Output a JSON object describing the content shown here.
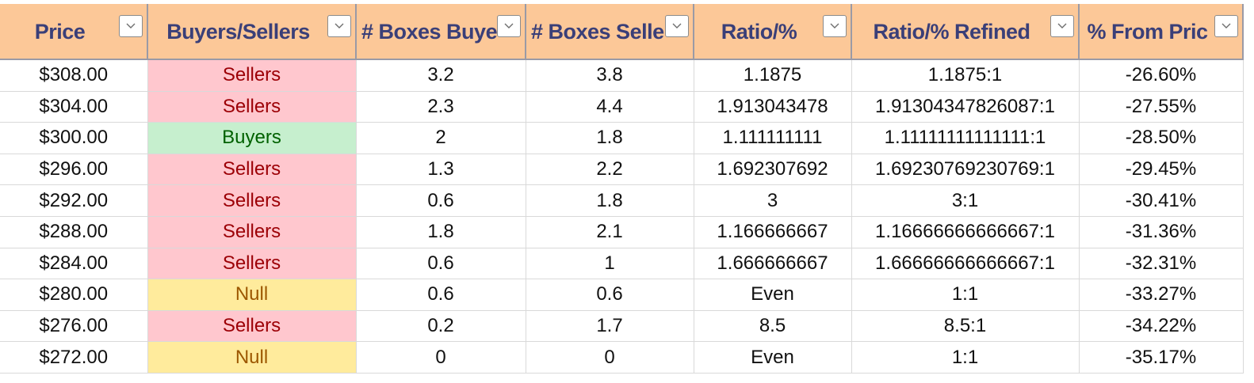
{
  "headers": [
    {
      "label": "Price",
      "key": "price"
    },
    {
      "label": "Buyers/Sellers",
      "key": "buyers_sellers"
    },
    {
      "label": "# Boxes Buye",
      "key": "boxes_buyers"
    },
    {
      "label": "# Boxes Selle",
      "key": "boxes_sellers"
    },
    {
      "label": "Ratio/%",
      "key": "ratio"
    },
    {
      "label": "Ratio/% Refined",
      "key": "ratio_refined"
    },
    {
      "label": "% From Pric",
      "key": "pct_from_price"
    }
  ],
  "colors": {
    "header_bg": "#fcc898",
    "header_text": "#3a3f78",
    "sellers_bg": "#ffc7ce",
    "sellers_text": "#9c0006",
    "buyers_bg": "#c6efce",
    "buyers_text": "#006100",
    "null_bg": "#ffeb9c",
    "null_text": "#9c5700"
  },
  "icons": {
    "filter": "chevron-down-icon"
  },
  "rows": [
    {
      "price": "$308.00",
      "side": "Sellers",
      "boxes_buyers": "3.2",
      "boxes_sellers": "3.8",
      "ratio": "1.1875",
      "ratio_refined": "1.1875:1",
      "pct_from_price": "-26.60%"
    },
    {
      "price": "$304.00",
      "side": "Sellers",
      "boxes_buyers": "2.3",
      "boxes_sellers": "4.4",
      "ratio": "1.913043478",
      "ratio_refined": "1.91304347826087:1",
      "pct_from_price": "-27.55%"
    },
    {
      "price": "$300.00",
      "side": "Buyers",
      "boxes_buyers": "2",
      "boxes_sellers": "1.8",
      "ratio": "1.111111111",
      "ratio_refined": "1.11111111111111:1",
      "pct_from_price": "-28.50%"
    },
    {
      "price": "$296.00",
      "side": "Sellers",
      "boxes_buyers": "1.3",
      "boxes_sellers": "2.2",
      "ratio": "1.692307692",
      "ratio_refined": "1.69230769230769:1",
      "pct_from_price": "-29.45%"
    },
    {
      "price": "$292.00",
      "side": "Sellers",
      "boxes_buyers": "0.6",
      "boxes_sellers": "1.8",
      "ratio": "3",
      "ratio_refined": "3:1",
      "pct_from_price": "-30.41%"
    },
    {
      "price": "$288.00",
      "side": "Sellers",
      "boxes_buyers": "1.8",
      "boxes_sellers": "2.1",
      "ratio": "1.166666667",
      "ratio_refined": "1.16666666666667:1",
      "pct_from_price": "-31.36%"
    },
    {
      "price": "$284.00",
      "side": "Sellers",
      "boxes_buyers": "0.6",
      "boxes_sellers": "1",
      "ratio": "1.666666667",
      "ratio_refined": "1.66666666666667:1",
      "pct_from_price": "-32.31%"
    },
    {
      "price": "$280.00",
      "side": "Null",
      "boxes_buyers": "0.6",
      "boxes_sellers": "0.6",
      "ratio": "Even",
      "ratio_refined": "1:1",
      "pct_from_price": "-33.27%"
    },
    {
      "price": "$276.00",
      "side": "Sellers",
      "boxes_buyers": "0.2",
      "boxes_sellers": "1.7",
      "ratio": "8.5",
      "ratio_refined": "8.5:1",
      "pct_from_price": "-34.22%"
    },
    {
      "price": "$272.00",
      "side": "Null",
      "boxes_buyers": "0",
      "boxes_sellers": "0",
      "ratio": "Even",
      "ratio_refined": "1:1",
      "pct_from_price": "-35.17%"
    }
  ]
}
